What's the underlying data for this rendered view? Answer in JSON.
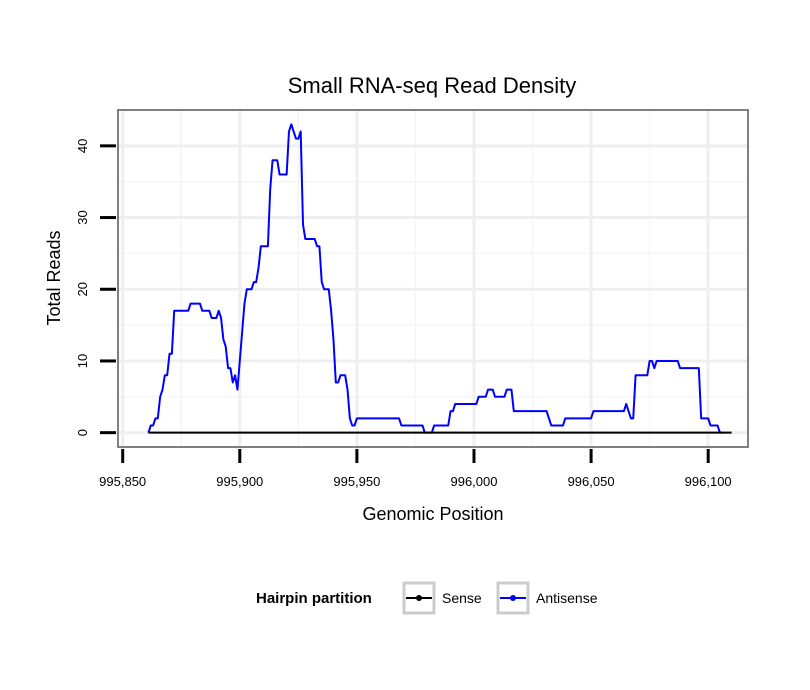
{
  "chart_data": {
    "type": "line",
    "title": "Small RNA-seq Read Density",
    "xlabel": "Genomic Position",
    "ylabel": "Total Reads",
    "xlim": [
      995848,
      996117
    ],
    "ylim": [
      -2,
      45
    ],
    "grid": true,
    "x_ticks": [
      995850,
      995900,
      995950,
      996000,
      996050,
      996100
    ],
    "x_tick_labels": [
      "995,850",
      "995,900",
      "995,950",
      "996,000",
      "996,050",
      "996,100"
    ],
    "y_ticks": [
      0,
      10,
      20,
      30,
      40
    ],
    "y_tick_labels": [
      "0",
      "10",
      "20",
      "30",
      "40"
    ],
    "legend": {
      "title": "Hairpin partition",
      "position": "bottom",
      "entries": [
        {
          "label": "Sense",
          "color": "#000000"
        },
        {
          "label": "Antisense",
          "color": "#0000ff"
        }
      ]
    },
    "series": [
      {
        "name": "Sense",
        "color": "#000000",
        "points": [
          [
            995861,
            0
          ],
          [
            996110,
            0
          ]
        ]
      },
      {
        "name": "Antisense",
        "color": "#0000ff",
        "points": [
          [
            995861,
            0
          ],
          [
            995862,
            1
          ],
          [
            995863,
            1
          ],
          [
            995864,
            2
          ],
          [
            995865,
            2
          ],
          [
            995866,
            5
          ],
          [
            995867,
            6
          ],
          [
            995868,
            8
          ],
          [
            995869,
            8
          ],
          [
            995870,
            11
          ],
          [
            995871,
            11
          ],
          [
            995872,
            17
          ],
          [
            995875,
            17
          ],
          [
            995878,
            17
          ],
          [
            995879,
            18
          ],
          [
            995883,
            18
          ],
          [
            995884,
            17
          ],
          [
            995887,
            17
          ],
          [
            995888,
            16
          ],
          [
            995890,
            16
          ],
          [
            995891,
            17
          ],
          [
            995892,
            16
          ],
          [
            995893,
            13
          ],
          [
            995894,
            12
          ],
          [
            995895,
            9
          ],
          [
            995896,
            9
          ],
          [
            995897,
            7
          ],
          [
            995898,
            8
          ],
          [
            995899,
            6
          ],
          [
            995900,
            10
          ],
          [
            995901,
            14
          ],
          [
            995902,
            18
          ],
          [
            995903,
            20
          ],
          [
            995905,
            20
          ],
          [
            995906,
            21
          ],
          [
            995907,
            21
          ],
          [
            995908,
            23
          ],
          [
            995909,
            26
          ],
          [
            995912,
            26
          ],
          [
            995913,
            34
          ],
          [
            995914,
            38
          ],
          [
            995916,
            38
          ],
          [
            995917,
            36
          ],
          [
            995920,
            36
          ],
          [
            995921,
            42
          ],
          [
            995922,
            43
          ],
          [
            995923,
            42
          ],
          [
            995924,
            41
          ],
          [
            995925,
            41
          ],
          [
            995926,
            42
          ],
          [
            995927,
            29
          ],
          [
            995928,
            27
          ],
          [
            995932,
            27
          ],
          [
            995933,
            26
          ],
          [
            995934,
            26
          ],
          [
            995935,
            21
          ],
          [
            995936,
            20
          ],
          [
            995938,
            20
          ],
          [
            995939,
            17
          ],
          [
            995940,
            13
          ],
          [
            995941,
            7
          ],
          [
            995942,
            7
          ],
          [
            995943,
            8
          ],
          [
            995945,
            8
          ],
          [
            995946,
            6
          ],
          [
            995947,
            2
          ],
          [
            995948,
            1
          ],
          [
            995949,
            1
          ],
          [
            995950,
            2
          ],
          [
            995968,
            2
          ],
          [
            995969,
            1
          ],
          [
            995978,
            1
          ],
          [
            995979,
            0
          ],
          [
            995982,
            0
          ],
          [
            995983,
            1
          ],
          [
            995989,
            1
          ],
          [
            995990,
            3
          ],
          [
            995991,
            3
          ],
          [
            995992,
            4
          ],
          [
            996001,
            4
          ],
          [
            996002,
            5
          ],
          [
            996005,
            5
          ],
          [
            996006,
            6
          ],
          [
            996008,
            6
          ],
          [
            996009,
            5
          ],
          [
            996013,
            5
          ],
          [
            996014,
            6
          ],
          [
            996016,
            6
          ],
          [
            996017,
            3
          ],
          [
            996031,
            3
          ],
          [
            996032,
            2
          ],
          [
            996033,
            1
          ],
          [
            996038,
            1
          ],
          [
            996039,
            2
          ],
          [
            996050,
            2
          ],
          [
            996051,
            3
          ],
          [
            996064,
            3
          ],
          [
            996065,
            4
          ],
          [
            996066,
            3
          ],
          [
            996067,
            2
          ],
          [
            996068,
            2
          ],
          [
            996069,
            8
          ],
          [
            996074,
            8
          ],
          [
            996075,
            10
          ],
          [
            996076,
            10
          ],
          [
            996077,
            9
          ],
          [
            996078,
            10
          ],
          [
            996087,
            10
          ],
          [
            996088,
            9
          ],
          [
            996096,
            9
          ],
          [
            996097,
            2
          ],
          [
            996100,
            2
          ],
          [
            996101,
            1
          ],
          [
            996104,
            1
          ],
          [
            996105,
            0
          ],
          [
            996106,
            0
          ]
        ]
      }
    ]
  }
}
